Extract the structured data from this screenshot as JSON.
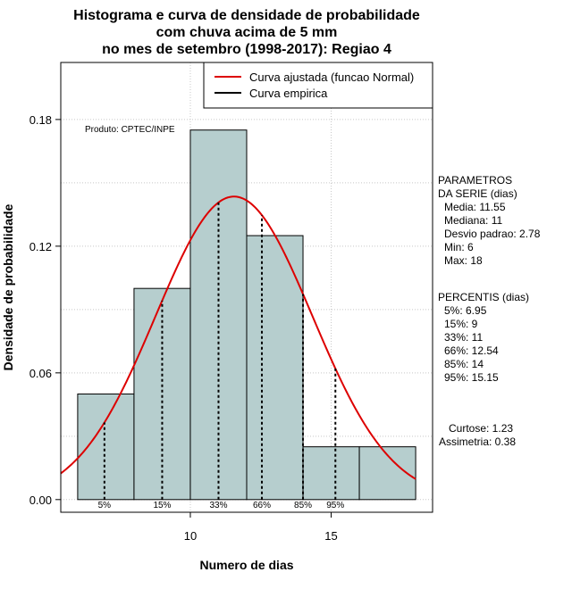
{
  "chart_data": {
    "type": "bar",
    "title_lines": [
      "Histograma e curva de densidade de probabilidade",
      "com chuva acima de 5 mm",
      "no mes de setembro (1998-2017): Regiao 4"
    ],
    "xlabel": "Numero de dias",
    "ylabel": "Densidade de probabilidade",
    "xlim": [
      5.4,
      18.6
    ],
    "ylim": [
      -0.006,
      0.207
    ],
    "x_ticks": [
      10,
      15
    ],
    "y_ticks": [
      0.0,
      0.06,
      0.12,
      0.18
    ],
    "y_tick_labels": [
      "0.00",
      "0.06",
      "0.12",
      "0.18"
    ],
    "grid": true,
    "bins": [
      {
        "x0": 6,
        "x1": 8,
        "density": 0.05
      },
      {
        "x0": 8,
        "x1": 10,
        "density": 0.1
      },
      {
        "x0": 10,
        "x1": 12,
        "density": 0.175
      },
      {
        "x0": 12,
        "x1": 14,
        "density": 0.125
      },
      {
        "x0": 14,
        "x1": 16,
        "density": 0.025
      },
      {
        "x0": 16,
        "x1": 18,
        "density": 0.025
      }
    ],
    "bar_color": "#b6cece",
    "curve": {
      "type": "normal",
      "mean": 11.55,
      "sd": 2.78,
      "color": "#dd0000"
    },
    "percentile_lines": [
      {
        "label": "5%",
        "x": 6.95
      },
      {
        "label": "15%",
        "x": 9
      },
      {
        "label": "33%",
        "x": 11
      },
      {
        "label": "66%",
        "x": 12.54
      },
      {
        "label": "85%",
        "x": 14
      },
      {
        "label": "95%",
        "x": 15.15
      }
    ],
    "legend": {
      "position": "top-right",
      "entries": [
        {
          "label": "Curva ajustada (funcao Normal)",
          "color": "#dd0000"
        },
        {
          "label": "Curva empirica",
          "color": "#000000"
        }
      ]
    },
    "annotation": "Produto: CPTEC/INPE",
    "parameters": {
      "heading": [
        "PARAMETROS",
        "DA SERIE (dias)"
      ],
      "lines": [
        "Media: 11.55",
        "Mediana: 11",
        "Desvio padrao: 2.78",
        "Min: 6",
        "Max: 18"
      ]
    },
    "percentis": {
      "heading": "PERCENTIS (dias)",
      "lines": [
        "5%: 6.95",
        "15%: 9",
        "33%: 11",
        "66%: 12.54",
        "85%: 14",
        "95%: 15.15"
      ]
    },
    "shape": {
      "lines": [
        "Curtose: 1.23",
        "Assimetria: 0.38"
      ]
    }
  }
}
